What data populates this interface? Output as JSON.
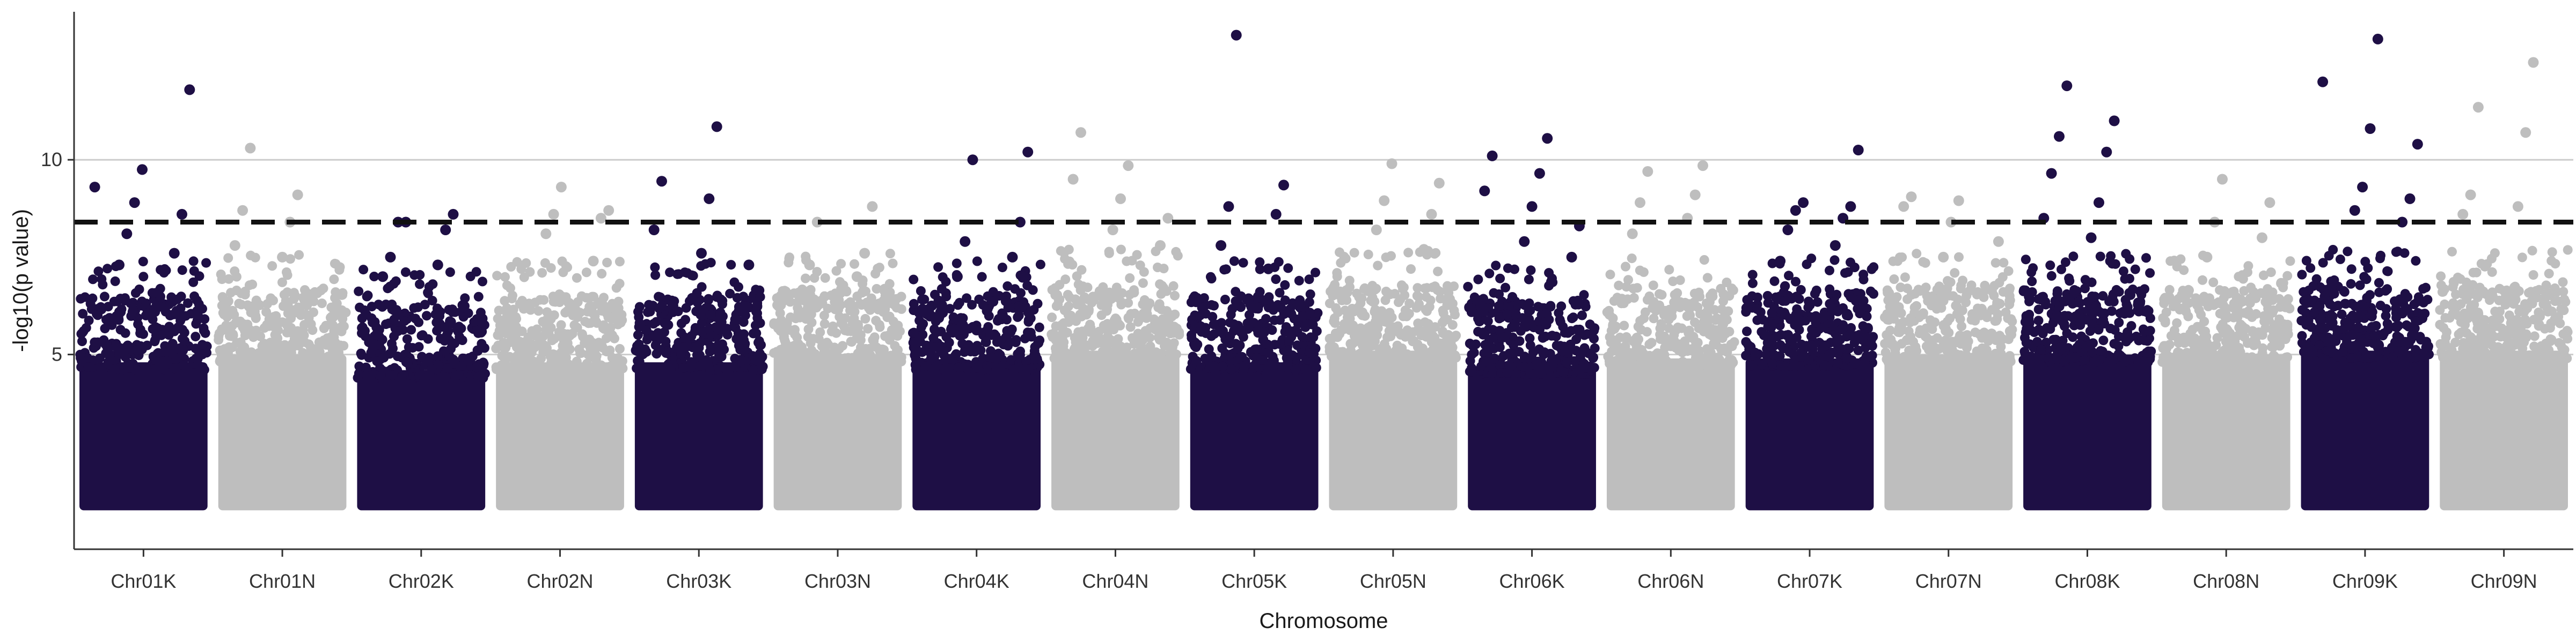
{
  "chart_data": {
    "type": "scatter",
    "title": "",
    "xlabel": "Chromosome",
    "ylabel": "-log10(p value)",
    "ylim": [
      0,
      13.8
    ],
    "yticks": [
      "5",
      "10"
    ],
    "ytick_values": [
      5,
      10
    ],
    "threshold": 8.4,
    "grid": "horizontal-major",
    "legend": "none",
    "colors": {
      "dark": "#1e0f45",
      "light": "#bebebe",
      "axis": "#333333",
      "grid": "#cccccc",
      "threshold": "#111111"
    },
    "categories": [
      "Chr01K",
      "Chr01N",
      "Chr02K",
      "Chr02N",
      "Chr03K",
      "Chr03N",
      "Chr04K",
      "Chr04N",
      "Chr05K",
      "Chr05N",
      "Chr06K",
      "Chr06N",
      "Chr07K",
      "Chr07N",
      "Chr08K",
      "Chr08N",
      "Chr09K",
      "Chr09N"
    ],
    "series": [
      {
        "category": "Chr01K",
        "color": "dark",
        "bulk_top": 6.0,
        "bulk_min": 1.0,
        "top_points": [
          9.3,
          9.75,
          11.8,
          8.9,
          8.6,
          8.1,
          7.6,
          7.3
        ]
      },
      {
        "category": "Chr01N",
        "color": "light",
        "bulk_top": 6.2,
        "bulk_min": 1.0,
        "top_points": [
          10.3,
          9.1,
          8.7,
          8.4,
          7.8,
          7.5
        ]
      },
      {
        "category": "Chr02K",
        "color": "dark",
        "bulk_top": 5.8,
        "bulk_min": 1.0,
        "top_points": [
          8.4,
          8.6,
          8.4,
          8.2,
          7.5,
          7.3,
          7.0
        ]
      },
      {
        "category": "Chr02N",
        "color": "light",
        "bulk_top": 6.0,
        "bulk_min": 1.0,
        "top_points": [
          9.3,
          8.7,
          8.6,
          8.5,
          8.1,
          7.4
        ]
      },
      {
        "category": "Chr03K",
        "color": "dark",
        "bulk_top": 6.0,
        "bulk_min": 1.0,
        "top_points": [
          10.85,
          9.45,
          9.0,
          8.2,
          7.6,
          7.3
        ]
      },
      {
        "category": "Chr03N",
        "color": "light",
        "bulk_top": 6.2,
        "bulk_min": 1.0,
        "top_points": [
          8.8,
          8.4,
          7.6,
          7.3,
          7.0
        ]
      },
      {
        "category": "Chr04K",
        "color": "dark",
        "bulk_top": 6.0,
        "bulk_min": 1.0,
        "top_points": [
          10.2,
          10.0,
          8.4,
          7.9,
          7.5,
          7.0
        ]
      },
      {
        "category": "Chr04N",
        "color": "light",
        "bulk_top": 6.3,
        "bulk_min": 1.0,
        "top_points": [
          10.7,
          9.85,
          9.5,
          9.0,
          8.5,
          8.2,
          7.8
        ]
      },
      {
        "category": "Chr05K",
        "color": "dark",
        "bulk_top": 6.0,
        "bulk_min": 1.0,
        "top_points": [
          13.2,
          9.35,
          8.8,
          8.6,
          7.8,
          7.2
        ]
      },
      {
        "category": "Chr05N",
        "color": "light",
        "bulk_top": 6.3,
        "bulk_min": 1.0,
        "top_points": [
          9.9,
          9.4,
          8.95,
          8.6,
          8.2,
          7.7
        ]
      },
      {
        "category": "Chr06K",
        "color": "dark",
        "bulk_top": 5.9,
        "bulk_min": 1.0,
        "top_points": [
          10.55,
          10.1,
          9.65,
          9.2,
          8.8,
          8.3,
          7.9,
          7.5
        ]
      },
      {
        "category": "Chr06N",
        "color": "light",
        "bulk_top": 6.1,
        "bulk_min": 1.0,
        "top_points": [
          9.85,
          9.7,
          9.1,
          8.9,
          8.5,
          8.1
        ]
      },
      {
        "category": "Chr07K",
        "color": "dark",
        "bulk_top": 6.1,
        "bulk_min": 1.0,
        "top_points": [
          10.25,
          8.9,
          8.8,
          8.7,
          8.5,
          8.2,
          7.8,
          7.4
        ]
      },
      {
        "category": "Chr07N",
        "color": "light",
        "bulk_top": 6.2,
        "bulk_min": 1.0,
        "top_points": [
          9.05,
          8.95,
          8.8,
          8.4,
          7.9,
          7.5
        ]
      },
      {
        "category": "Chr08K",
        "color": "dark",
        "bulk_top": 6.2,
        "bulk_min": 1.0,
        "top_points": [
          11.9,
          11.0,
          10.6,
          10.2,
          9.65,
          8.9,
          8.5,
          8.0
        ]
      },
      {
        "category": "Chr08N",
        "color": "light",
        "bulk_top": 6.2,
        "bulk_min": 1.0,
        "top_points": [
          9.5,
          8.9,
          8.4,
          8.0,
          7.5
        ]
      },
      {
        "category": "Chr09K",
        "color": "dark",
        "bulk_top": 6.3,
        "bulk_min": 1.0,
        "top_points": [
          13.1,
          12.0,
          10.8,
          10.4,
          9.3,
          9.0,
          8.7,
          8.4
        ]
      },
      {
        "category": "Chr09N",
        "color": "light",
        "bulk_top": 6.3,
        "bulk_min": 1.0,
        "top_points": [
          12.5,
          11.35,
          10.7,
          9.1,
          8.8,
          8.6
        ]
      }
    ]
  }
}
